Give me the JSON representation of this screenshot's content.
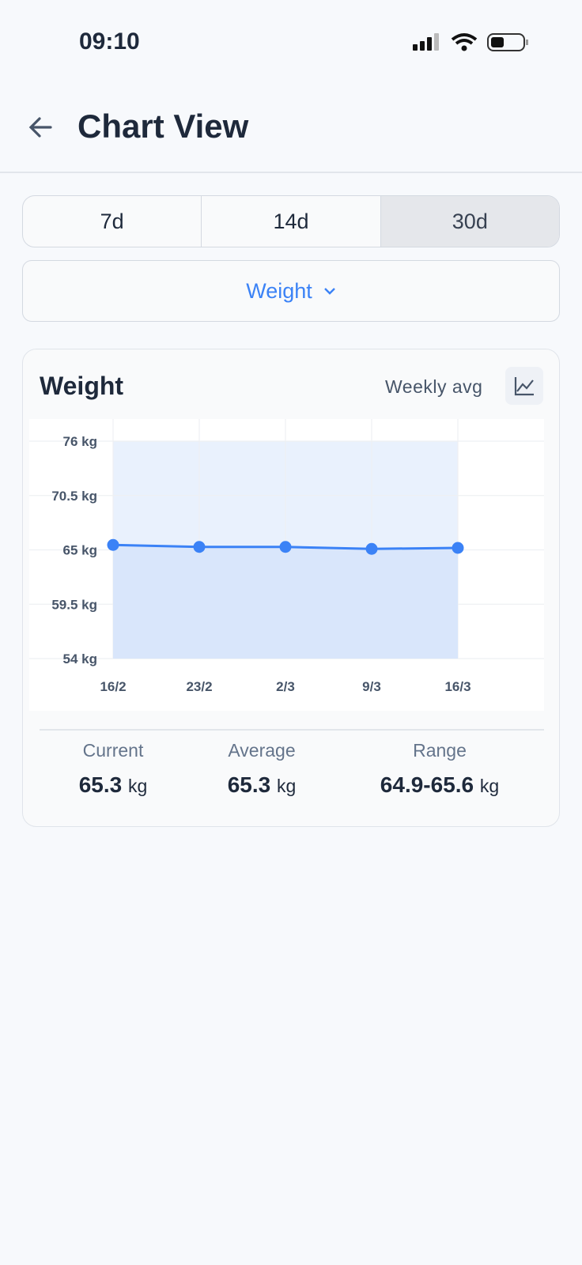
{
  "status_bar": {
    "time": "09:10"
  },
  "header": {
    "title": "Chart View"
  },
  "tabs": {
    "options": [
      "7d",
      "14d",
      "30d"
    ],
    "selected": 2
  },
  "metric_select": {
    "label": "Weight"
  },
  "card": {
    "title": "Weight",
    "toggle": "Weekly avg",
    "stats": [
      {
        "label": "Current",
        "value": 65.3,
        "unit": "kg"
      },
      {
        "label": "Average",
        "value": 65.3,
        "unit": "kg"
      },
      {
        "label": "Range",
        "value": "64.9-65.6",
        "unit": "kg"
      }
    ]
  },
  "chart_data": {
    "type": "line",
    "categories": [
      "16/2",
      "23/2",
      "2/3",
      "9/3",
      "16/3"
    ],
    "series": [
      {
        "name": "Weight",
        "color": "#3b82f6",
        "values": [
          65.5,
          65.3,
          65.3,
          65.1,
          65.2
        ]
      }
    ],
    "ylim": [
      54,
      76
    ],
    "yticks": [
      {
        "value": 54,
        "label": "54 kg"
      },
      {
        "value": 59.5,
        "label": "59.5 kg"
      },
      {
        "value": 65,
        "label": "65 kg"
      },
      {
        "value": 70.5,
        "label": "70.5 kg"
      },
      {
        "value": 76,
        "label": "76 kg"
      }
    ],
    "grid": true,
    "area": true
  }
}
